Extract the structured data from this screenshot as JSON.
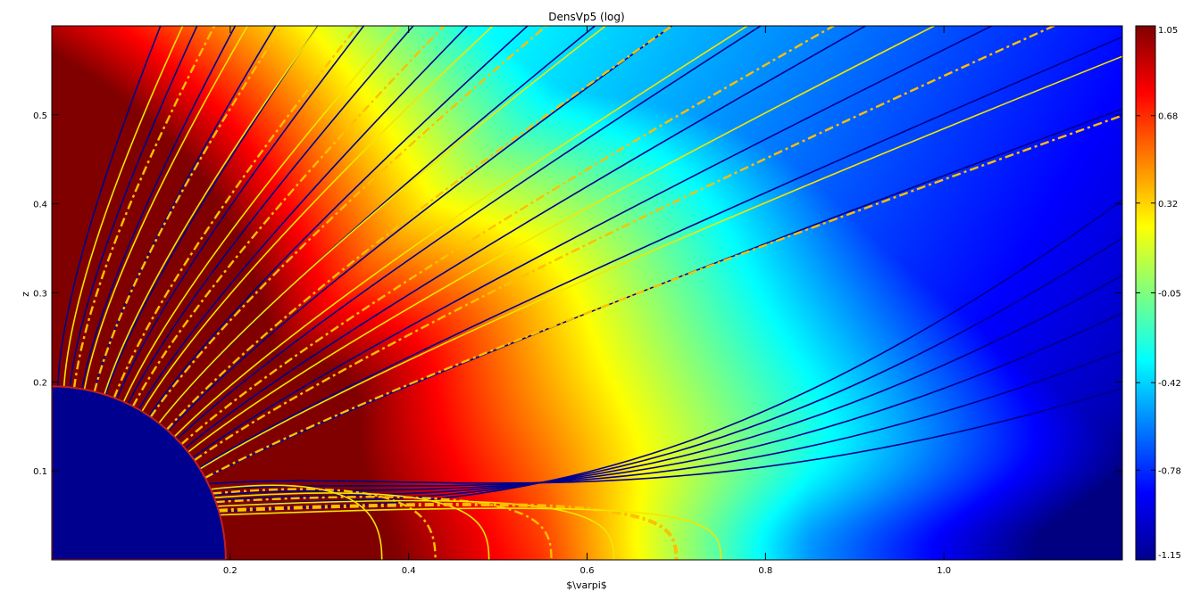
{
  "chart_data": {
    "type": "heatmap",
    "title": "DensVp5 (log)",
    "xlabel": "$\\varpi$",
    "ylabel": "z",
    "xlim": [
      0.0,
      1.2
    ],
    "ylim": [
      0.0,
      0.6
    ],
    "x_ticks": [
      0.2,
      0.4,
      0.6,
      0.8,
      1.0
    ],
    "x_tick_labels": [
      "0.2",
      "0.4",
      "0.6",
      "0.8",
      "1.0"
    ],
    "y_ticks": [
      0.1,
      0.2,
      0.3,
      0.4,
      0.5
    ],
    "y_tick_labels": [
      "0.1",
      "0.2",
      "0.3",
      "0.4",
      "0.5"
    ],
    "colorbar": {
      "min": -1.15,
      "max": 1.05,
      "ticks": [
        1.05,
        0.68,
        0.32,
        -0.05,
        -0.42,
        -0.78,
        -1.15
      ],
      "tick_labels": [
        "1.05",
        "0.68",
        "0.32",
        "-0.05",
        "-0.42",
        "-0.78",
        "-1.15"
      ],
      "colormap": "jet"
    },
    "star": {
      "radius": 0.195,
      "color": "#00008f"
    },
    "field_lines": {
      "color": "#00008b",
      "open_footpoint_angles_deg": [
        88,
        84,
        80,
        76,
        72,
        68,
        64,
        60,
        56,
        52,
        48,
        44,
        40,
        36,
        32,
        28
      ],
      "closed_footpoint_angles_deg": [
        26,
        24,
        22,
        20,
        18,
        16
      ]
    },
    "streamlines": {
      "solid_color": "#f2e600",
      "dashed_color": "#ffbf00",
      "closed_apex_x": [
        0.37,
        0.43,
        0.49,
        0.56,
        0.63,
        0.7,
        0.75
      ]
    }
  }
}
